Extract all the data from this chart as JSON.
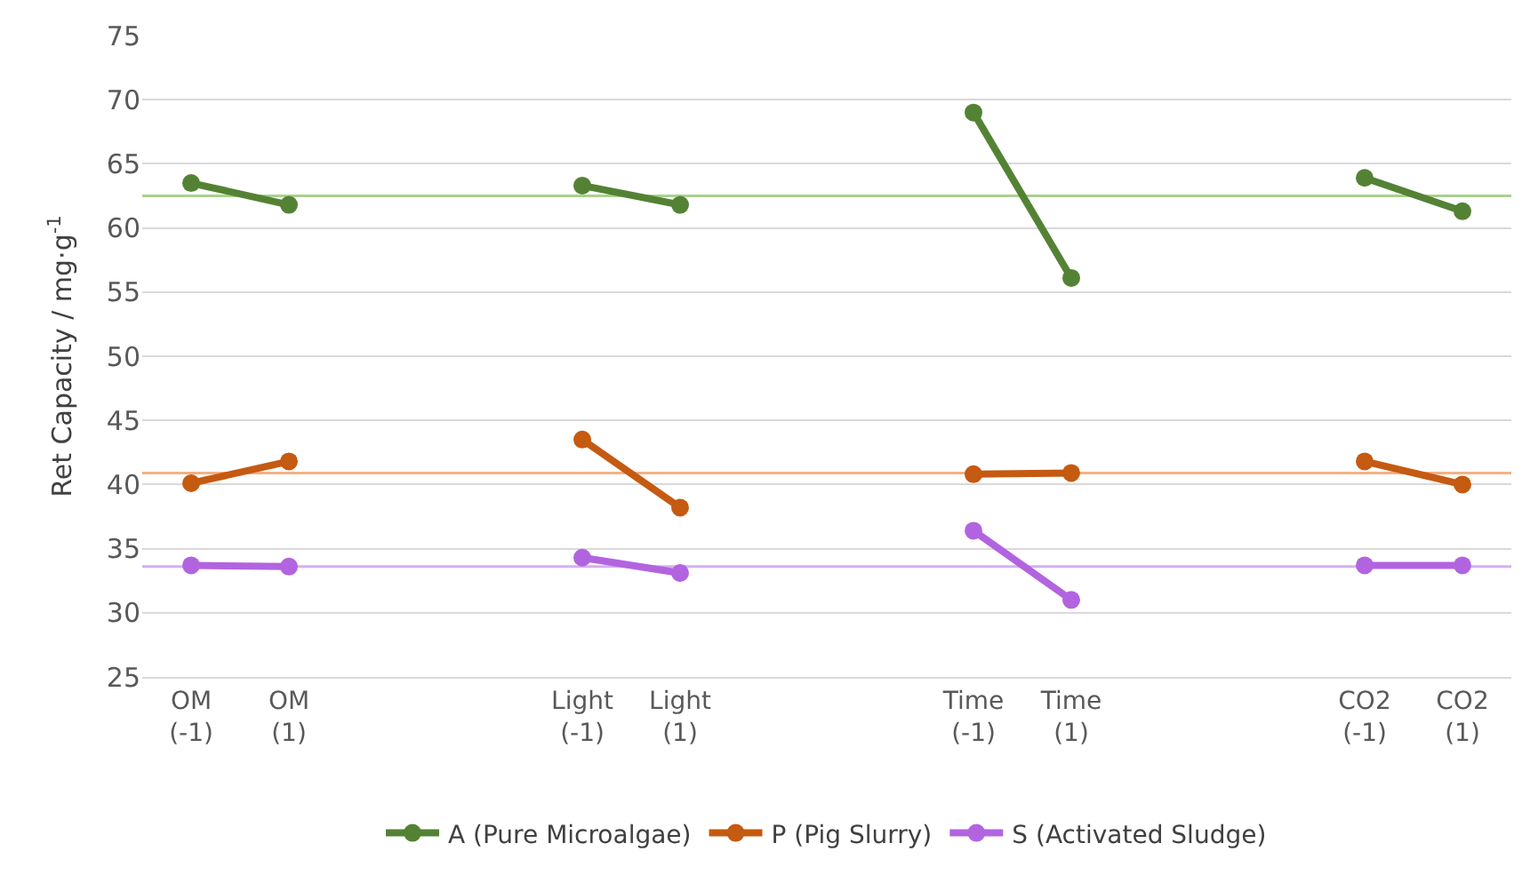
{
  "chart_data": {
    "type": "line",
    "ylabel": "Ret Capacity / mg·g$^{-1}$",
    "categories": [
      "OM\n(-1)",
      "OM\n(1)",
      null,
      null,
      "Light\n(-1)",
      "Light\n(1)",
      null,
      null,
      "Time\n(-1)",
      "Time\n(1)",
      null,
      null,
      "CO2\n(-1)",
      "CO2\n(1)"
    ],
    "series": [
      {
        "name": "A (Pure Microalgae)",
        "color": "#548235",
        "values": [
          63.5,
          61.8,
          null,
          null,
          63.3,
          61.8,
          null,
          null,
          69.0,
          56.1,
          null,
          null,
          63.9,
          61.3
        ]
      },
      {
        "name": "P (Pig Slurry)",
        "color": "#c55a11",
        "values": [
          40.1,
          41.8,
          null,
          null,
          43.5,
          38.2,
          null,
          null,
          40.8,
          40.9,
          null,
          null,
          41.8,
          40.0
        ]
      },
      {
        "name": "S (Activated Sludge)",
        "color": "#b264e0",
        "values": [
          33.7,
          33.6,
          null,
          null,
          34.3,
          33.1,
          null,
          null,
          36.4,
          31.0,
          null,
          null,
          33.7,
          33.7
        ]
      }
    ],
    "ref_lines": [
      {
        "axis": "y",
        "value": 62.5,
        "color": "#a9d18e"
      },
      {
        "axis": "y",
        "value": 40.9,
        "color": "#f4b183"
      },
      {
        "axis": "y",
        "value": 33.6,
        "color": "#d5b0f0"
      }
    ],
    "ylim": [
      25,
      75
    ],
    "yticks": [
      25,
      30,
      35,
      40,
      45,
      50,
      55,
      60,
      65,
      70,
      75
    ],
    "grid": "y",
    "legend": "bottom",
    "marker": "circle",
    "line_style": "solid"
  }
}
